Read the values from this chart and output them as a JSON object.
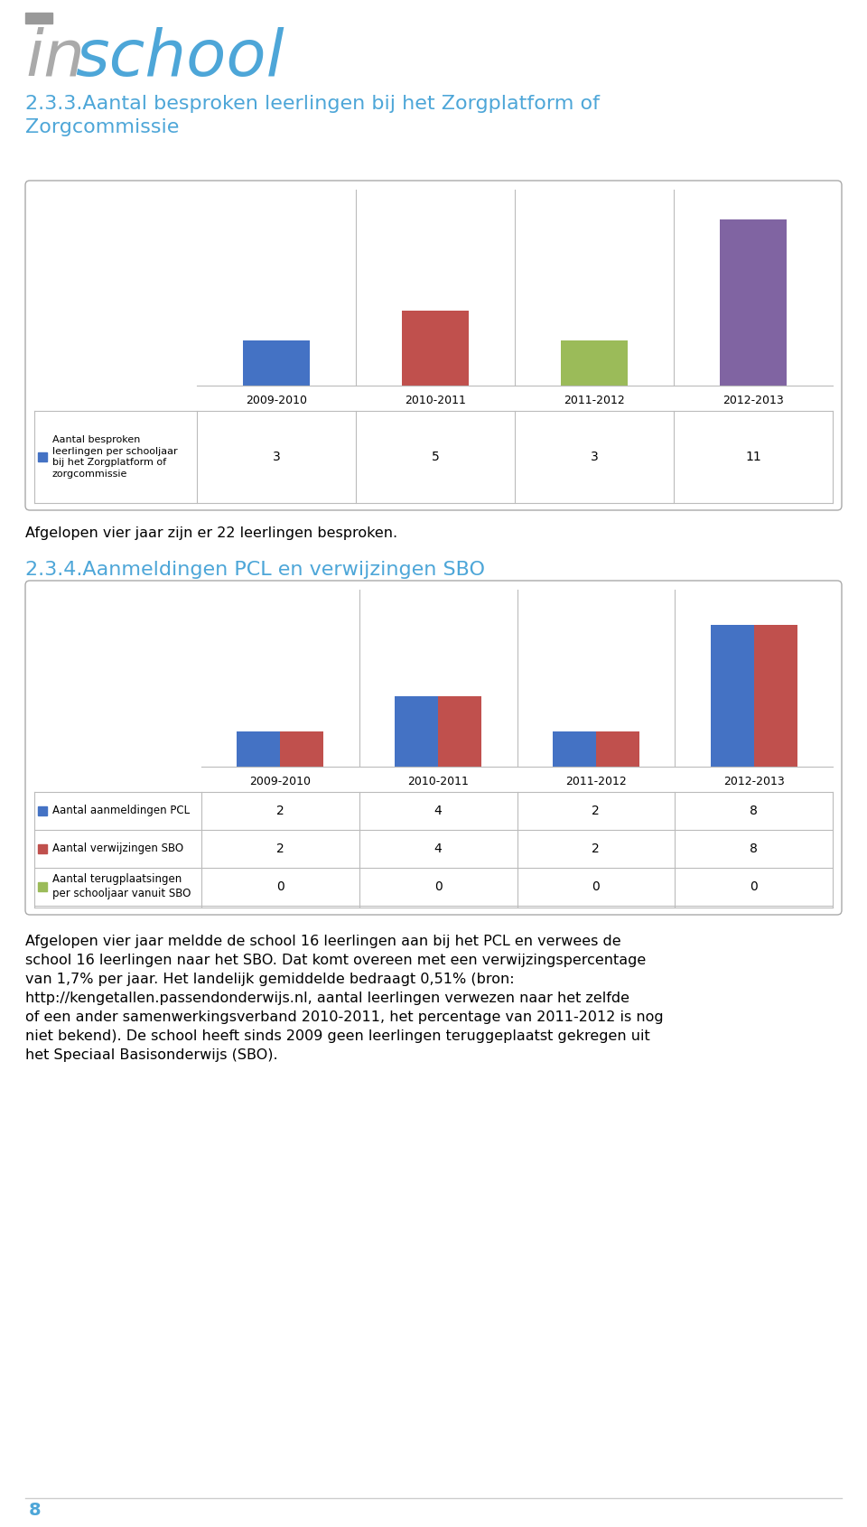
{
  "background_color": "#ffffff",
  "logo_color_in": "#aaaaaa",
  "logo_color_school": "#4da6d8",
  "logo_fontsize": 52,
  "logo_square_color": "#999999",
  "section1_title": "2.3.3.Aantal besproken leerlingen bij het Zorgplatform of\nZorgcommissie",
  "section1_title_color": "#4da6d8",
  "section1_title_fontsize": 16,
  "chart1_years": [
    "2009-2010",
    "2010-2011",
    "2011-2012",
    "2012-2013"
  ],
  "chart1_values": [
    3,
    5,
    3,
    11
  ],
  "chart1_colors": [
    "#4472c4",
    "#c0504d",
    "#9bbb59",
    "#8064a2"
  ],
  "chart1_legend_label": "Aantal besproken\nleerlingen per schooljaar\nbij het Zorgplatform of\nzorgcommissie",
  "chart1_legend_color": "#4472c4",
  "chart1_data_row": [
    3,
    5,
    3,
    11
  ],
  "chart1_ylim": [
    0,
    13
  ],
  "text1": "Afgelopen vier jaar zijn er 22 leerlingen besproken.",
  "section2_title": "2.3.4.Aanmeldingen PCL en verwijzingen SBO",
  "section2_title_color": "#4da6d8",
  "section2_title_fontsize": 16,
  "chart2_years": [
    "2009-2010",
    "2010-2011",
    "2011-2012",
    "2012-2013"
  ],
  "chart2_series": [
    {
      "label": "Aantal aanmeldingen PCL",
      "color": "#4472c4",
      "values": [
        2,
        4,
        2,
        8
      ]
    },
    {
      "label": "Aantal verwijzingen SBO",
      "color": "#c0504d",
      "values": [
        2,
        4,
        2,
        8
      ]
    },
    {
      "label": "Aantal terugplaatsingen\nper schooljaar vanuit SBO",
      "color": "#9bbb59",
      "values": [
        0,
        0,
        0,
        0
      ]
    }
  ],
  "chart2_ylim": [
    0,
    10
  ],
  "text2_lines": [
    "Afgelopen vier jaar meldde de school 16 leerlingen aan bij het PCL en verwees de",
    "school 16 leerlingen naar het SBO. Dat komt overeen met een verwijzingspercentage",
    "van 1,7% per jaar. Het landelijk gemiddelde bedraagt 0,51% (bron:",
    "http://kengetallen.passendonderwijs.nl, aantal leerlingen verwezen naar het zelfde",
    "of een ander samenwerkingsverband 2010-2011, het percentage van 2011-2012 is nog",
    "niet bekend). De school heeft sinds 2009 geen leerlingen teruggeplaatst gekregen uit",
    "het Speciaal Basisonderwijs (SBO)."
  ],
  "footer_page": "8",
  "footer_color": "#4da6d8",
  "footer_fontsize": 14
}
